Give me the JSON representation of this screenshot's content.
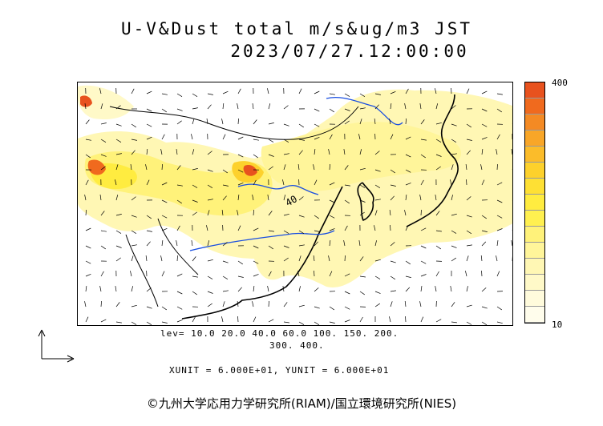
{
  "title_line1": "U-V&Dust total m/s&ug/m3 JST",
  "title_line2": "2023/07/27.12:00:00",
  "colorbar": {
    "max_label": "400",
    "min_label": "10",
    "colors": [
      "#e8521e",
      "#f06a1e",
      "#f48a24",
      "#f8a628",
      "#fbbc2a",
      "#fdd12c",
      "#fee034",
      "#ffec40",
      "#fff050",
      "#fff27a",
      "#fff59a",
      "#fff7b4",
      "#fff9c8",
      "#fffbdc",
      "#fffdec"
    ]
  },
  "levels_line1": "lev= 10.0 20.0 40.0 60.0 100. 150. 200.",
  "levels_line2": "300. 400.",
  "contour_label": "40",
  "units_text": "XUNIT = 6.000E+01, YUNIT = 6.000E+01",
  "copyright": "©九州大学応用力学研究所(RIAM)/国立環境研究所(NIES)"
}
